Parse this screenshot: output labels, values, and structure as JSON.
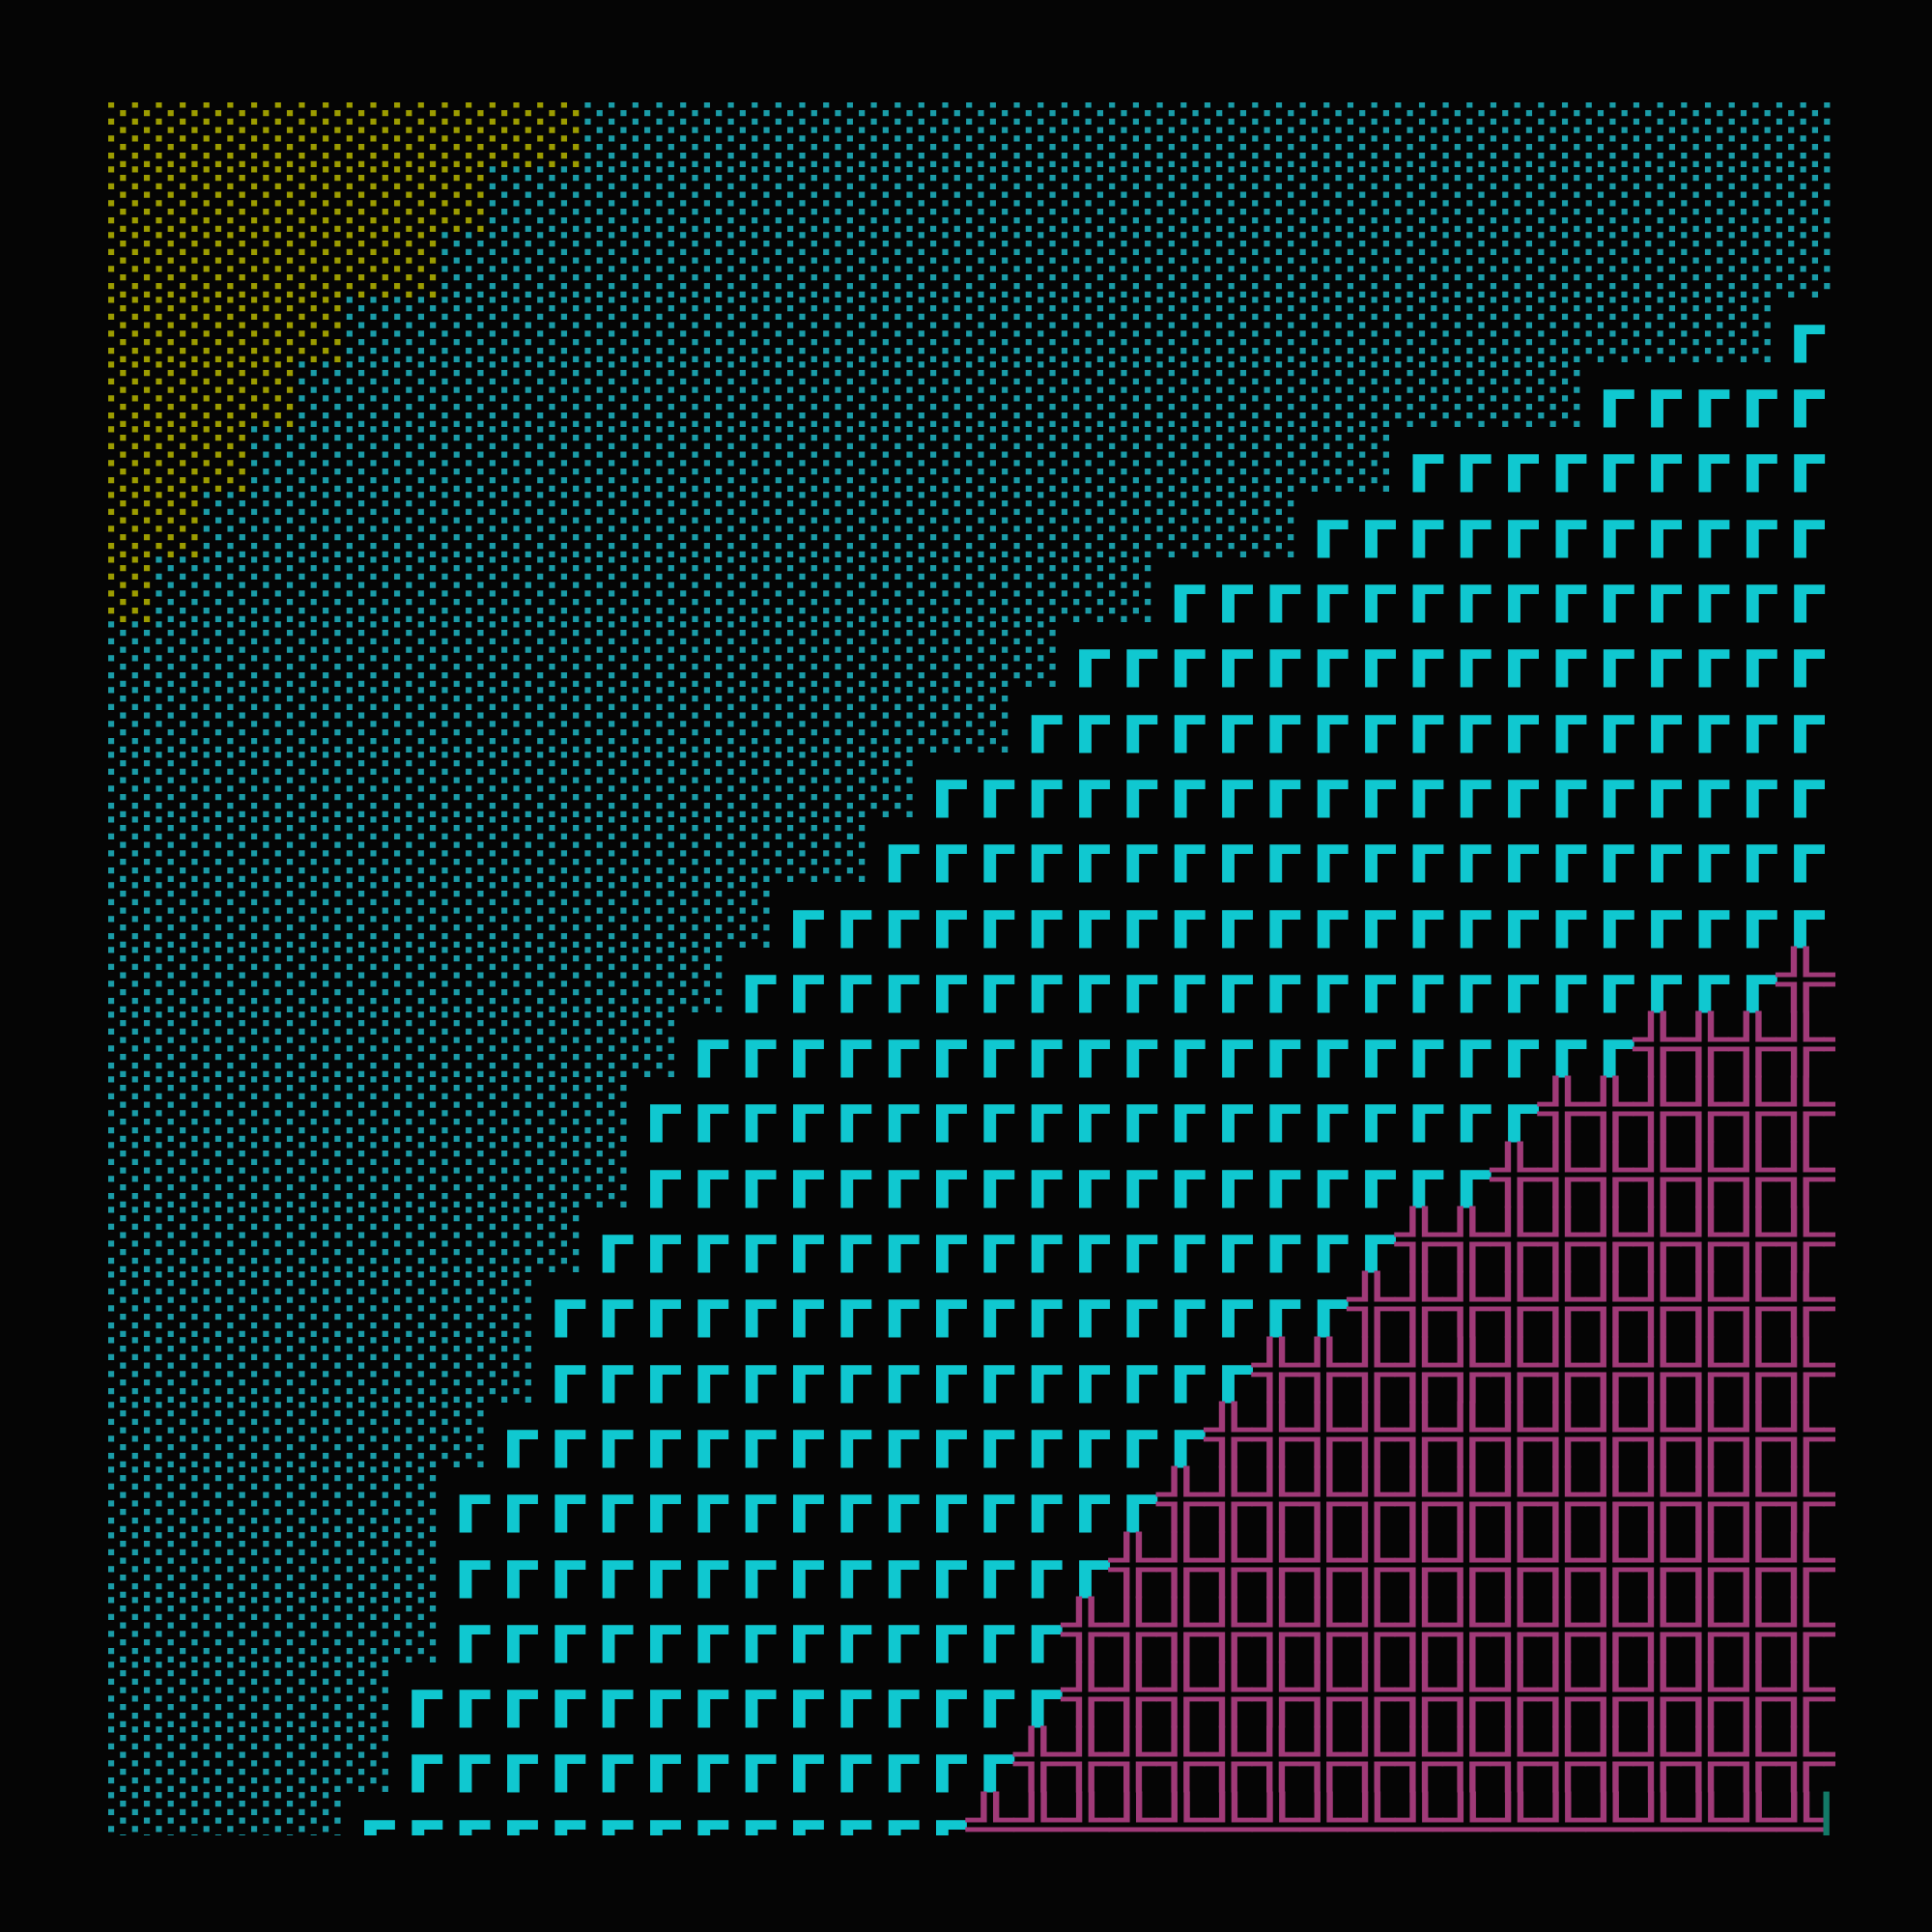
{
  "colors": {
    "yellow": "#9c9c00",
    "teal": "#1a9ca8",
    "cyan": "#10c8d0",
    "pink": "#a03a78",
    "green": "#137a68",
    "background": "#050505"
  },
  "rows": [
    [
      {
        "t": "░░░░░░░░░░",
        "c": "yellow"
      },
      {
        "t": "░░░░░░░░░░░░░░░░░░░░░░░░░░░",
        "c": "teal"
      }
    ],
    [
      {
        "t": "░░░░░░░░",
        "c": "yellow"
      },
      {
        "t": "░░░░░░░░░░░░░░░░░░░░░░░░░░░░░",
        "c": "teal"
      }
    ],
    [
      {
        "t": "░░░░░░░",
        "c": "yellow"
      },
      {
        "t": "░░░░░░░░░░░░░░░░░░░░░░░░░░░░░░",
        "c": "teal"
      }
    ],
    [
      {
        "t": "░░░░░",
        "c": "yellow"
      },
      {
        "t": "░░░░░░░░░░░░░░░░░░░░░░░░░░░░░░",
        "c": "teal"
      },
      {
        "t": "┏┏",
        "c": "cyan"
      }
    ],
    [
      {
        "t": "░░░░",
        "c": "yellow"
      },
      {
        "t": "░░░░░░░░░░░░░░░░░░░░░░░░░░░",
        "c": "teal"
      },
      {
        "t": "┏┏┏┏┏┏",
        "c": "cyan"
      }
    ],
    [
      {
        "t": "░░░",
        "c": "yellow"
      },
      {
        "t": "░░░░░░░░░░░░░░░░░░░░░░░░",
        "c": "teal"
      },
      {
        "t": "┏┏┏┏┏┏┏┏┏┏",
        "c": "cyan"
      }
    ],
    [
      {
        "t": "░░",
        "c": "yellow"
      },
      {
        "t": "░░░░░░░░░░░░░░░░░░░░░░░",
        "c": "teal"
      },
      {
        "t": "┏┏┏┏┏┏┏┏┏┏┏┏",
        "c": "cyan"
      }
    ],
    [
      {
        "t": "░",
        "c": "yellow"
      },
      {
        "t": "░░░░░░░░░░░░░░░░░░░░░",
        "c": "teal"
      },
      {
        "t": "┏┏┏┏┏┏┏┏┏┏┏┏┏┏┏",
        "c": "cyan"
      }
    ],
    [
      {
        "t": "░░░░░░░░░░░░░░░░░░░░",
        "c": "teal"
      },
      {
        "t": "┏┏┏┏┏┏┏┏┏┏┏┏┏┏┏┏┏",
        "c": "cyan"
      }
    ],
    [
      {
        "t": "░░░░░░░░░░░░░░░░░░░",
        "c": "teal"
      },
      {
        "t": "┏┏┏┏┏┏┏┏┏┏┏┏┏┏┏┏┏┏",
        "c": "cyan"
      }
    ],
    [
      {
        "t": "░░░░░░░░░░░░░░░░░",
        "c": "teal"
      },
      {
        "t": "┏┏┏┏┏┏┏┏┏┏┏┏┏┏┏┏┏┏┏┏",
        "c": "cyan"
      }
    ],
    [
      {
        "t": "░░░░░░░░░░░░░░░░",
        "c": "teal"
      },
      {
        "t": "┏┏┏┏┏┏┏┏┏┏┏┏┏┏┏┏┏┏┏┏┏",
        "c": "cyan"
      }
    ],
    [
      {
        "t": "░░░░░░░░░░░░░░",
        "c": "teal"
      },
      {
        "t": "┏┏┏┏┏┏┏┏┏┏┏┏┏┏┏┏┏┏┏┏┏┏┏",
        "c": "cyan"
      }
    ],
    [
      {
        "t": "░░░░░░░░░░░░░",
        "c": "teal"
      },
      {
        "t": "┏┏┏┏┏┏┏┏┏┏┏┏┏┏┏┏┏┏┏┏┏┏",
        "c": "cyan"
      },
      {
        "t": "╬╬",
        "c": "pink"
      }
    ],
    [
      {
        "t": "░░░░░░░░░░░░",
        "c": "teal"
      },
      {
        "t": "┏┏┏┏┏┏┏┏┏┏┏┏┏┏┏┏┏┏┏┏",
        "c": "cyan"
      },
      {
        "t": "╬╬╬╬╬",
        "c": "pink"
      }
    ],
    [
      {
        "t": "░░░░░░░░░░░",
        "c": "teal"
      },
      {
        "t": "┏┏┏┏┏┏┏┏┏┏┏┏┏┏┏┏┏┏┏",
        "c": "cyan"
      },
      {
        "t": "╬╬╬╬╬╬╬",
        "c": "pink"
      }
    ],
    [
      {
        "t": "░░░░░░░░░░░",
        "c": "teal"
      },
      {
        "t": "┏┏┏┏┏┏┏┏┏┏┏┏┏┏┏┏┏┏",
        "c": "cyan"
      },
      {
        "t": "╬╬╬╬╬╬╬╬",
        "c": "pink"
      }
    ],
    [
      {
        "t": "░░░░░░░░░░",
        "c": "teal"
      },
      {
        "t": "┏┏┏┏┏┏┏┏┏┏┏┏┏┏┏┏┏",
        "c": "cyan"
      },
      {
        "t": "╬╬╬╬╬╬╬╬╬╬",
        "c": "pink"
      }
    ],
    [
      {
        "t": "░░░░░░░░░",
        "c": "teal"
      },
      {
        "t": "┏┏┏┏┏┏┏┏┏┏┏┏┏┏┏┏┏",
        "c": "cyan"
      },
      {
        "t": "╬╬╬╬╬╬╬╬╬╬╬",
        "c": "pink"
      }
    ],
    [
      {
        "t": "░░░░░░░░░",
        "c": "teal"
      },
      {
        "t": "┏┏┏┏┏┏┏┏┏┏┏┏┏┏┏",
        "c": "cyan"
      },
      {
        "t": "╬╬╬╬╬╬╬╬╬╬╬╬╬",
        "c": "pink"
      }
    ],
    [
      {
        "t": "░░░░░░░░",
        "c": "teal"
      },
      {
        "t": "┏┏┏┏┏┏┏┏┏┏┏┏┏┏┏",
        "c": "cyan"
      },
      {
        "t": "╬╬╬╬╬╬╬╬╬╬╬╬╬╬",
        "c": "pink"
      }
    ],
    [
      {
        "t": "░░░░░░░",
        "c": "teal"
      },
      {
        "t": "┏┏┏┏┏┏┏┏┏┏┏┏┏┏┏",
        "c": "cyan"
      },
      {
        "t": "╬╬╬╬╬╬╬╬╬╬╬╬╬╬╬",
        "c": "pink"
      }
    ],
    [
      {
        "t": "░░░░░░░",
        "c": "teal"
      },
      {
        "t": "┏┏┏┏┏┏┏┏┏┏┏┏┏┏",
        "c": "cyan"
      },
      {
        "t": "╬╬╬╬╬╬╬╬╬╬╬╬╬╬╬╬",
        "c": "pink"
      }
    ],
    [
      {
        "t": "░░░░░░░",
        "c": "teal"
      },
      {
        "t": "┏┏┏┏┏┏┏┏┏┏┏┏┏",
        "c": "cyan"
      },
      {
        "t": "╬╬╬╬╬╬╬╬╬╬╬╬╬╬╬╬╬",
        "c": "pink"
      }
    ],
    [
      {
        "t": "░░░░░░",
        "c": "teal"
      },
      {
        "t": "┏┏┏┏┏┏┏┏┏┏┏┏┏┏",
        "c": "cyan"
      },
      {
        "t": "╬╬╬╬╬╬╬╬╬╬╬╬╬╬╬╬╬",
        "c": "pink"
      }
    ],
    [
      {
        "t": "░░░░░░",
        "c": "teal"
      },
      {
        "t": "┏┏┏┏┏┏┏┏┏┏┏┏┏",
        "c": "cyan"
      },
      {
        "t": "╬╬╬╬╬╬╬╬╬╬╬╬╬╬╬╬╬╬",
        "c": "pink"
      }
    ],
    [
      {
        "t": "░░░░░",
        "c": "teal"
      },
      {
        "t": "┏┏┏┏┏┏┏┏┏┏┏┏┏",
        "c": "cyan"
      },
      {
        "t": "╩╩╩╩╩╩╩╩╩╩╩╩╩╩╩╩╩╩",
        "c": "pink"
      },
      {
        "t": "▏",
        "c": "green"
      }
    ]
  ]
}
